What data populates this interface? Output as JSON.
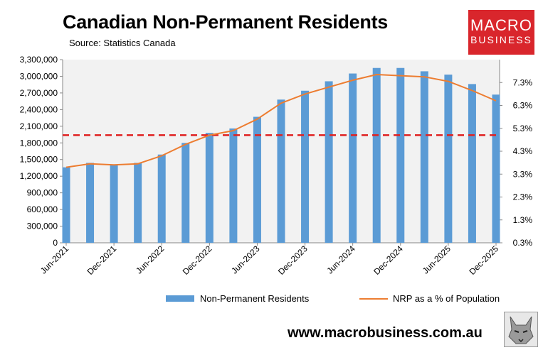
{
  "header": {
    "title": "Canadian Non-Permanent Residents",
    "subtitle": "Source: Statistics Canada"
  },
  "logo": {
    "line1": "MACRO",
    "line2": "BUSINESS",
    "color": "#d9262c"
  },
  "footer": {
    "url": "www.macrobusiness.com.au"
  },
  "colors": {
    "bar": "#5b9bd5",
    "line": "#ed7d31",
    "reference": "#e02020"
  },
  "chart_data": {
    "type": "bar",
    "categories": [
      "Jun-2021",
      "Sep-2021",
      "Dec-2021",
      "Mar-2022",
      "Jun-2022",
      "Sep-2022",
      "Dec-2022",
      "Mar-2023",
      "Jun-2023",
      "Sep-2023",
      "Dec-2023",
      "Mar-2024",
      "Jun-2024",
      "Sep-2024",
      "Dec-2024",
      "Mar-2025",
      "Jun-2025",
      "Sep-2025",
      "Dec-2025"
    ],
    "x_tick_labels": [
      "Jun-2021",
      "Dec-2021",
      "Jun-2022",
      "Dec-2022",
      "Jun-2023",
      "Dec-2023",
      "Jun-2024",
      "Dec-2024",
      "Jun-2025",
      "Dec-2025"
    ],
    "series": [
      {
        "name": "Non-Permanent Residents",
        "type": "bar",
        "axis": "left",
        "values": [
          1360000,
          1440000,
          1410000,
          1440000,
          1590000,
          1800000,
          1980000,
          2060000,
          2270000,
          2580000,
          2740000,
          2910000,
          3050000,
          3150000,
          3150000,
          3090000,
          3030000,
          2860000,
          2670000
        ]
      },
      {
        "name": "NRP as a % of Population",
        "type": "line",
        "axis": "right",
        "values": [
          3.6,
          3.75,
          3.7,
          3.75,
          4.1,
          4.6,
          5.0,
          5.2,
          5.7,
          6.4,
          6.8,
          7.1,
          7.4,
          7.65,
          7.6,
          7.55,
          7.35,
          6.95,
          6.5
        ]
      }
    ],
    "y_left": {
      "lim": [
        0,
        3300000
      ],
      "ticks": [
        "0",
        "300,000",
        "600,000",
        "900,000",
        "1,200,000",
        "1,500,000",
        "1,800,000",
        "2,100,000",
        "2,400,000",
        "2,700,000",
        "3,000,000",
        "3,300,000"
      ]
    },
    "y_right": {
      "lim": [
        0.3,
        8.3
      ],
      "ticks": [
        "0.3%",
        "1.3%",
        "2.3%",
        "3.3%",
        "4.3%",
        "5.3%",
        "6.3%",
        "7.3%"
      ]
    },
    "reference_line": {
      "axis": "right",
      "value": 5.0,
      "style": "dashed"
    },
    "grid": false,
    "legend": "bottom"
  }
}
